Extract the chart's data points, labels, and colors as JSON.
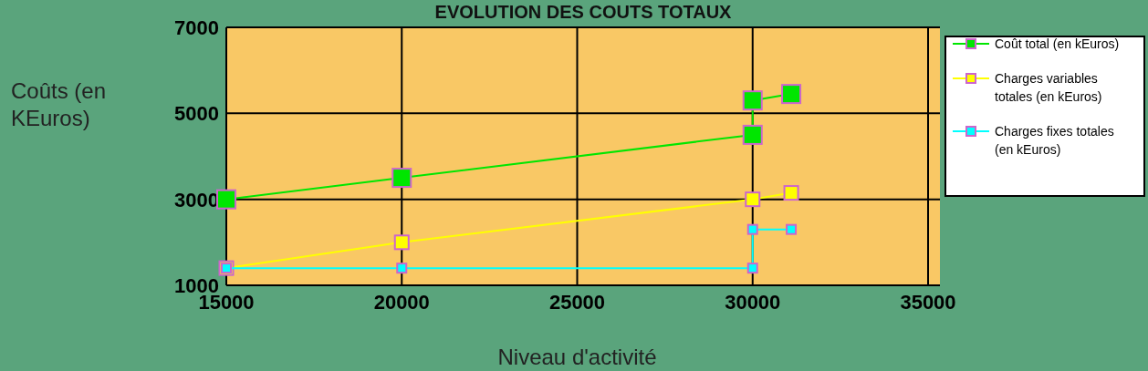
{
  "chart_data": {
    "type": "line",
    "title": "EVOLUTION DES COUTS TOTAUX",
    "xlabel": "Niveau d'activité",
    "ylabel": "Coûts (en KEuros)",
    "xlim": [
      15000,
      35000
    ],
    "xticks": [
      15000,
      20000,
      25000,
      30000,
      35000
    ],
    "ylim": [
      1000,
      7000
    ],
    "yticks": [
      1000,
      3000,
      5000,
      7000
    ],
    "grid": true,
    "legend": "right",
    "marker": "square",
    "line_style": "solid",
    "series": [
      {
        "name": "Coût total (en kEuros)",
        "color": "#00e600",
        "x": [
          15000,
          20000,
          30000,
          30000,
          31100
        ],
        "values": [
          3000,
          3500,
          4500,
          5300,
          5450
        ]
      },
      {
        "name": "Charges variables totales (en kEuros)",
        "color": "#ffff00",
        "x": [
          15000,
          20000,
          30000,
          31100
        ],
        "values": [
          1400,
          2000,
          3000,
          3150
        ]
      },
      {
        "name": "Charges fixes totales (en kEuros)",
        "color": "#00ffff",
        "x": [
          15000,
          20000,
          30000,
          30000,
          31100
        ],
        "values": [
          1400,
          1400,
          1400,
          2300,
          2300
        ]
      }
    ]
  }
}
